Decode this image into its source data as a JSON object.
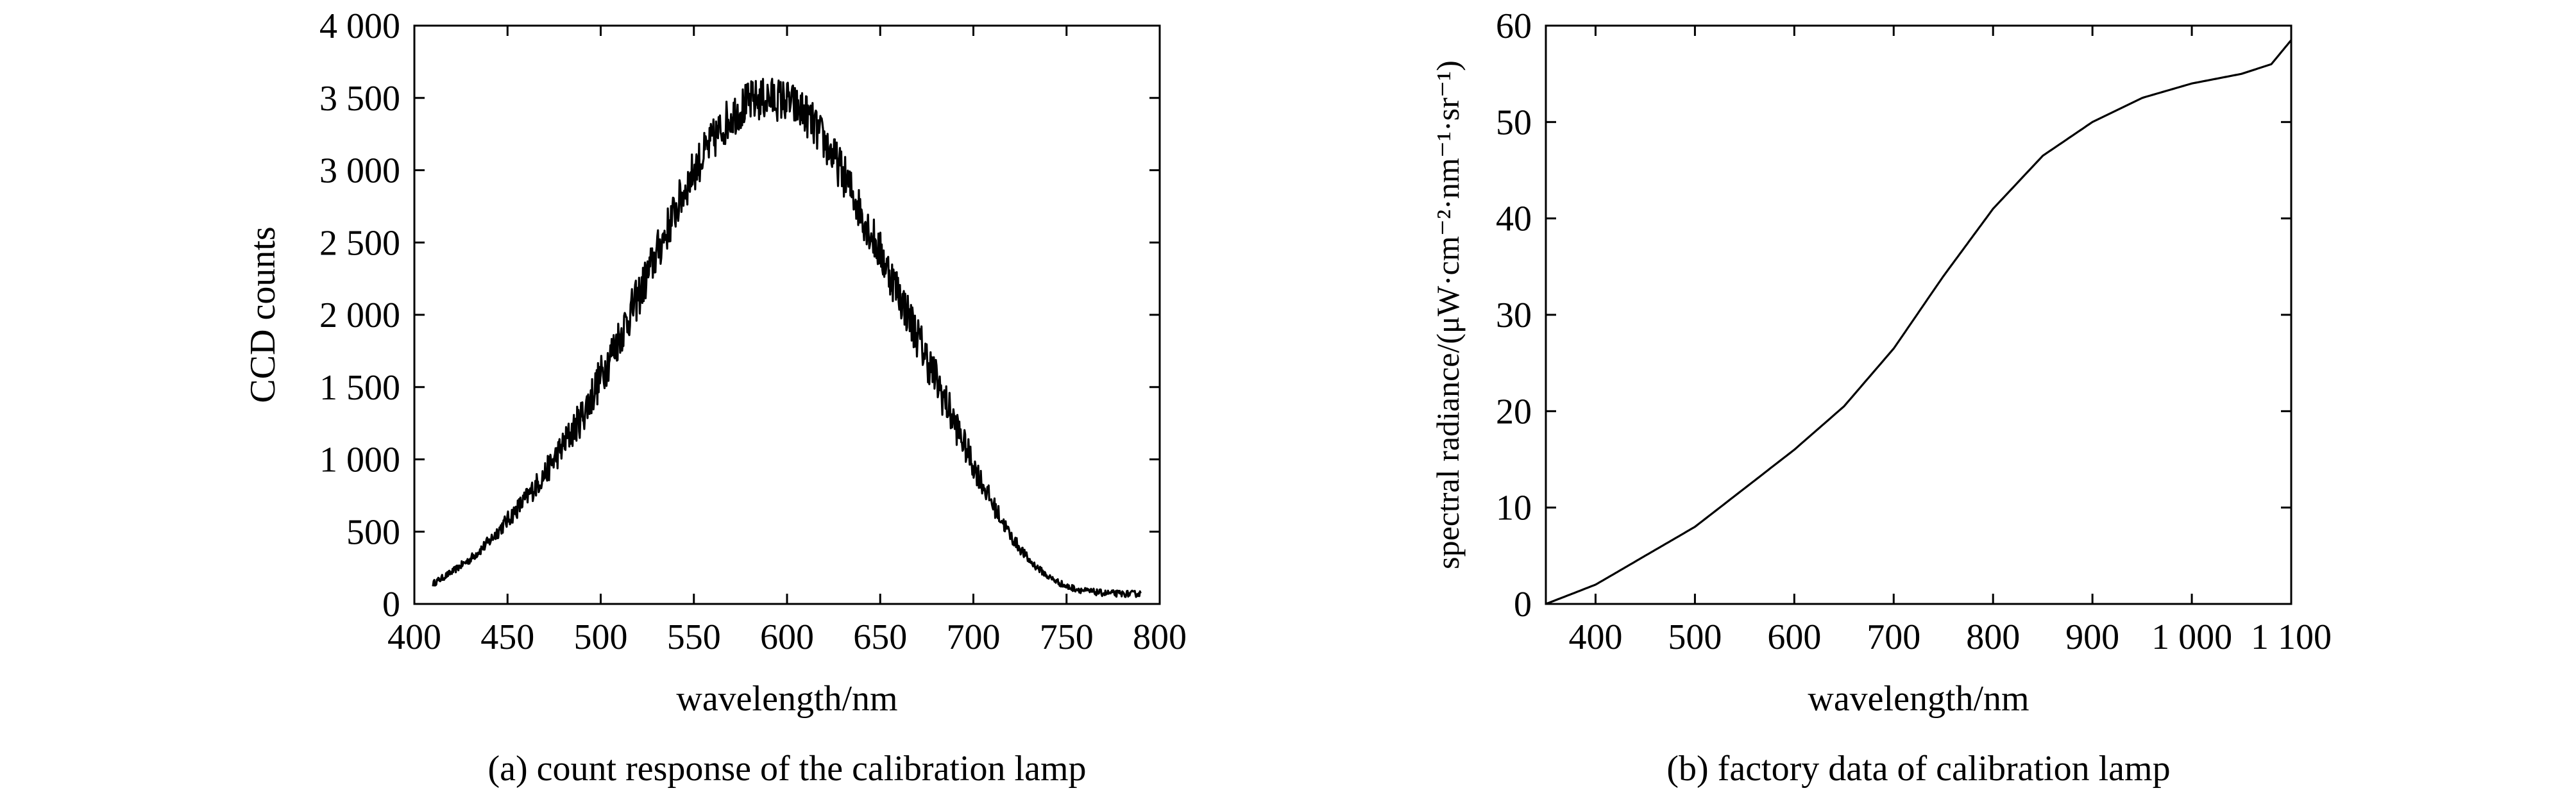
{
  "chart_data": [
    {
      "type": "line",
      "xlabel": "wavelength/nm",
      "ylabel": "CCD counts",
      "caption": "(a) count response of the calibration lamp",
      "xlim": [
        400,
        800
      ],
      "ylim": [
        0,
        4000
      ],
      "x_ticks": [
        400,
        450,
        500,
        550,
        600,
        650,
        700,
        750,
        800
      ],
      "x_tick_labels": [
        "400",
        "450",
        "500",
        "550",
        "600",
        "650",
        "700",
        "750",
        "800"
      ],
      "y_ticks": [
        0,
        500,
        1000,
        1500,
        2000,
        2500,
        3000,
        3500,
        4000
      ],
      "y_tick_labels": [
        "0",
        "500",
        "1 000",
        "1 500",
        "2 000",
        "2 500",
        "3 000",
        "3 500",
        "4 000"
      ],
      "grid": false,
      "series": [
        {
          "x": [
            410,
            420,
            430,
            440,
            450,
            460,
            470,
            480,
            490,
            500,
            510,
            520,
            530,
            540,
            550,
            560,
            570,
            580,
            590,
            600,
            610,
            620,
            630,
            640,
            650,
            660,
            670,
            680,
            690,
            700,
            710,
            720,
            730,
            740,
            750,
            760,
            770,
            780,
            790
          ],
          "y": [
            140,
            220,
            310,
            430,
            580,
            730,
            900,
            1100,
            1300,
            1570,
            1850,
            2120,
            2420,
            2720,
            3000,
            3200,
            3380,
            3470,
            3500,
            3480,
            3390,
            3200,
            2980,
            2700,
            2430,
            2150,
            1850,
            1550,
            1250,
            960,
            700,
            470,
            300,
            190,
            120,
            90,
            75,
            70,
            70
          ],
          "noise_amplitude": 150
        }
      ]
    },
    {
      "type": "line",
      "xlabel": "wavelength/nm",
      "ylabel": "spectral radiance/(μW·cm⁻²·nm⁻¹·sr⁻¹)",
      "caption": "(b) factory data of calibration lamp",
      "xlim": [
        350,
        1100
      ],
      "ylim": [
        0,
        60
      ],
      "x_ticks": [
        400,
        500,
        600,
        700,
        800,
        900,
        1000,
        1100
      ],
      "x_tick_labels": [
        "400",
        "500",
        "600",
        "700",
        "800",
        "900",
        "1 000",
        "1 100"
      ],
      "y_ticks": [
        0,
        10,
        20,
        30,
        40,
        50,
        60
      ],
      "y_tick_labels": [
        "0",
        "10",
        "20",
        "30",
        "40",
        "50",
        "60"
      ],
      "grid": false,
      "series": [
        {
          "x": [
            350,
            400,
            450,
            500,
            550,
            600,
            650,
            700,
            750,
            800,
            850,
            900,
            950,
            1000,
            1050,
            1080,
            1100
          ],
          "y": [
            0,
            2,
            5,
            8,
            12,
            16,
            20.5,
            26.5,
            34,
            41,
            46.5,
            50,
            52.5,
            54,
            55,
            56,
            58.5
          ]
        }
      ]
    }
  ]
}
